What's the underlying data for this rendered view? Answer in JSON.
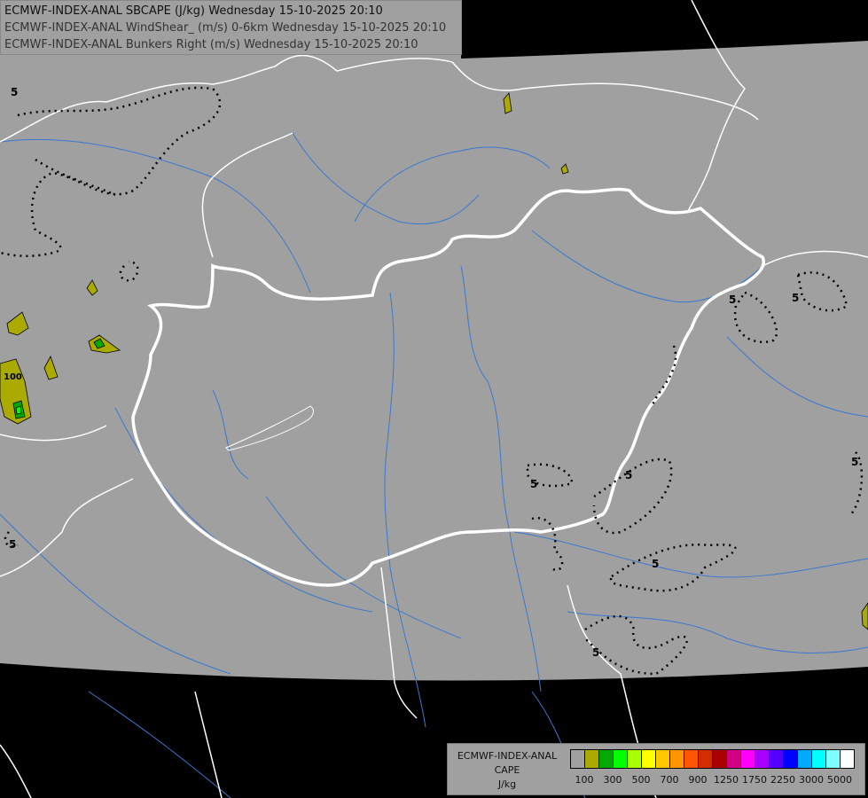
{
  "titles": [
    "ECMWF-INDEX-ANAL SBCAPE (J/kg) Wednesday 15-10-2025 20:10",
    "ECMWF-INDEX-ANAL WindShear_ (m/s) 0-6km Wednesday 15-10-2025 20:10",
    "ECMWF-INDEX-ANAL Bunkers Right (m/s) Wednesday 15-10-2025 20:10"
  ],
  "legend": {
    "line1": "ECMWF-INDEX-ANAL",
    "line2": "CAPE",
    "line3": "J/kg",
    "colors": [
      "#a0a0a0",
      "#aaaa00",
      "#00aa00",
      "#00ff00",
      "#aaff00",
      "#ffff00",
      "#ffc800",
      "#ff9600",
      "#ff5500",
      "#d22d00",
      "#aa0000",
      "#d20082",
      "#ff00ff",
      "#aa00ff",
      "#5500ff",
      "#0000ff",
      "#00aaff",
      "#00ffff",
      "#80ffff",
      "#ffffff"
    ],
    "tick_labels": [
      "100",
      "300",
      "500",
      "700",
      "900",
      "1250",
      "1750",
      "2250",
      "3000",
      "5000"
    ]
  },
  "contour_labels": {
    "shear": "5",
    "cape": "100"
  },
  "colors": {
    "domain": "#a0a0a0",
    "outside": "#000000",
    "borders": "#ffffff",
    "rivers": "#3a78d0"
  }
}
